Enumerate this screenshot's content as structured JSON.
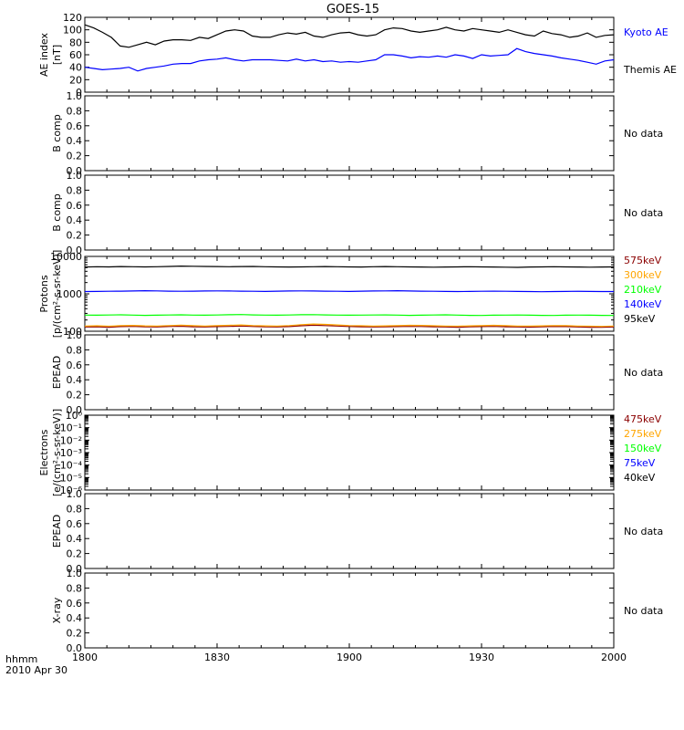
{
  "title": "GOES-15",
  "footer": {
    "line1": "hhmm",
    "line2": "2010 Apr 30"
  },
  "x_ticks": [
    "1800",
    "1830",
    "1900",
    "1930",
    "2000"
  ],
  "chart_data": [
    {
      "type": "line",
      "ylabel": [
        "AE index",
        "[nT]"
      ],
      "yticks": [
        "120",
        "100",
        "80",
        "60",
        "40",
        "20",
        "0"
      ],
      "ylim": [
        0,
        120
      ],
      "x_range_minutes": [
        0,
        120
      ],
      "series": [
        {
          "name": "Kyoto AE",
          "color": "#0000ff",
          "x": [
            0,
            2,
            4,
            6,
            8,
            10,
            12,
            14,
            16,
            18,
            20,
            22,
            24,
            26,
            28,
            30,
            32,
            34,
            36,
            38,
            40,
            42,
            44,
            46,
            48,
            50,
            52,
            54,
            56,
            58,
            60,
            62,
            64,
            66,
            68,
            70,
            72,
            74,
            76,
            78,
            80,
            82,
            84,
            86,
            88,
            90,
            92,
            94,
            96,
            98,
            100,
            102,
            104,
            106,
            108,
            110,
            112,
            114,
            116,
            118,
            120
          ],
          "values": [
            40,
            38,
            36,
            37,
            38,
            40,
            34,
            38,
            40,
            42,
            45,
            46,
            46,
            50,
            52,
            53,
            55,
            52,
            50,
            52,
            52,
            52,
            51,
            50,
            53,
            50,
            52,
            49,
            50,
            48,
            49,
            48,
            50,
            52,
            60,
            60,
            58,
            55,
            57,
            56,
            58,
            56,
            60,
            58,
            54,
            60,
            58,
            59,
            60,
            70,
            65,
            62,
            60,
            58,
            55,
            53,
            51,
            48,
            45,
            50,
            52
          ]
        },
        {
          "name": "Themis AE",
          "color": "#000000",
          "x": [
            0,
            2,
            4,
            6,
            8,
            10,
            12,
            14,
            16,
            18,
            20,
            22,
            24,
            26,
            28,
            30,
            32,
            34,
            36,
            38,
            40,
            42,
            44,
            46,
            48,
            50,
            52,
            54,
            56,
            58,
            60,
            62,
            64,
            66,
            68,
            70,
            72,
            74,
            76,
            78,
            80,
            82,
            84,
            86,
            88,
            90,
            92,
            94,
            96,
            98,
            100,
            102,
            104,
            106,
            108,
            110,
            112,
            114,
            116,
            118,
            120
          ],
          "values": [
            108,
            103,
            96,
            88,
            74,
            72,
            76,
            80,
            76,
            82,
            84,
            84,
            83,
            88,
            86,
            92,
            98,
            100,
            98,
            90,
            88,
            88,
            92,
            95,
            93,
            96,
            90,
            88,
            92,
            95,
            96,
            92,
            90,
            92,
            100,
            103,
            102,
            98,
            96,
            98,
            100,
            104,
            100,
            98,
            102,
            100,
            98,
            96,
            100,
            96,
            92,
            90,
            98,
            94,
            92,
            88,
            90,
            95,
            88,
            91,
            92
          ]
        }
      ]
    },
    {
      "type": "line",
      "ylabel": [
        "B comp"
      ],
      "yticks": [
        "1.0",
        "0.8",
        "0.6",
        "0.4",
        "0.2",
        "0.0"
      ],
      "ylim": [
        0,
        1
      ],
      "series": [],
      "note": "No data"
    },
    {
      "type": "line",
      "ylabel": [
        "B comp"
      ],
      "yticks": [
        "1.0",
        "0.8",
        "0.6",
        "0.4",
        "0.2",
        "0.0"
      ],
      "ylim": [
        0,
        1
      ],
      "series": [],
      "note": "No data"
    },
    {
      "type": "line",
      "ylabel": [
        "Protons",
        "[p/(cm²-s-sr-keV)]"
      ],
      "yscale": "log",
      "yticks": [
        "10000",
        "1000",
        "100"
      ],
      "ylim": [
        100,
        10000
      ],
      "series": [
        {
          "name": "575keV",
          "color": "#8b0000",
          "values": [
            130,
            132,
            128,
            133,
            135,
            131,
            130,
            134,
            136,
            132,
            130,
            133,
            135,
            138,
            134,
            131,
            130,
            133,
            140,
            145,
            142,
            138,
            134,
            132,
            130,
            131,
            133,
            135,
            134,
            132,
            130,
            128,
            131,
            133,
            135,
            132,
            130,
            129,
            131,
            134,
            133,
            130,
            128,
            127,
            130
          ]
        },
        {
          "name": "300keV",
          "color": "#ffa500",
          "values": [
            138,
            140,
            136,
            141,
            143,
            139,
            138,
            142,
            145,
            141,
            138,
            141,
            144,
            147,
            142,
            139,
            138,
            142,
            150,
            156,
            152,
            147,
            142,
            140,
            138,
            139,
            141,
            144,
            143,
            140,
            138,
            136,
            139,
            141,
            144,
            141,
            138,
            137,
            139,
            142,
            141,
            138,
            136,
            135,
            138
          ]
        },
        {
          "name": "210keV",
          "color": "#00ff00",
          "values": [
            270,
            268,
            272,
            275,
            270,
            265,
            268,
            272,
            275,
            270,
            268,
            272,
            276,
            280,
            274,
            270,
            268,
            272,
            276,
            278,
            274,
            270,
            268,
            270,
            272,
            274,
            270,
            266,
            268,
            272,
            275,
            270,
            266,
            264,
            268,
            270,
            272,
            268,
            265,
            264,
            268,
            270,
            268,
            265,
            264
          ]
        },
        {
          "name": "140keV",
          "color": "#0000ff",
          "values": [
            1150,
            1160,
            1170,
            1180,
            1190,
            1210,
            1200,
            1180,
            1170,
            1180,
            1190,
            1200,
            1190,
            1180,
            1170,
            1160,
            1180,
            1190,
            1200,
            1190,
            1180,
            1170,
            1160,
            1180,
            1190,
            1200,
            1210,
            1190,
            1180,
            1170,
            1160,
            1150,
            1160,
            1170,
            1180,
            1170,
            1160,
            1150,
            1140,
            1150,
            1160,
            1170,
            1160,
            1150,
            1150
          ]
        },
        {
          "name": "95keV",
          "color": "#000000",
          "values": [
            5200,
            5300,
            5250,
            5350,
            5300,
            5250,
            5300,
            5400,
            5500,
            5450,
            5400,
            5350,
            5300,
            5350,
            5400,
            5300,
            5250,
            5200,
            5250,
            5300,
            5350,
            5300,
            5250,
            5200,
            5300,
            5350,
            5300,
            5250,
            5200,
            5150,
            5200,
            5250,
            5300,
            5250,
            5200,
            5150,
            5100,
            5200,
            5250,
            5300,
            5250,
            5200,
            5150,
            5200,
            5250
          ]
        }
      ]
    },
    {
      "type": "line",
      "ylabel": [
        "EPEAD"
      ],
      "yticks": [
        "1.0",
        "0.8",
        "0.6",
        "0.4",
        "0.2",
        "0.0"
      ],
      "ylim": [
        0,
        1
      ],
      "series": [],
      "note": "No data"
    },
    {
      "type": "line",
      "ylabel": [
        "Electrons",
        "[e/(cm²-s-sr-keV)]"
      ],
      "yscale": "log",
      "yticks": [
        "10⁰",
        "10⁻¹",
        "10⁻²",
        "10⁻³",
        "10⁻⁴",
        "10⁻⁵",
        "10⁻⁶"
      ],
      "ylim": [
        1e-06,
        1
      ],
      "series": [
        {
          "name": "475keV",
          "color": "#8b0000"
        },
        {
          "name": "275keV",
          "color": "#ffa500"
        },
        {
          "name": "150keV",
          "color": "#00ff00"
        },
        {
          "name": "75keV",
          "color": "#0000ff"
        },
        {
          "name": "40keV",
          "color": "#000000"
        }
      ]
    },
    {
      "type": "line",
      "ylabel": [
        "EPEAD"
      ],
      "yticks": [
        "1.0",
        "0.8",
        "0.6",
        "0.4",
        "0.2",
        "0.0"
      ],
      "ylim": [
        0,
        1
      ],
      "series": [],
      "note": "No data"
    },
    {
      "type": "line",
      "ylabel": [
        "X-ray"
      ],
      "yticks": [
        "1.0",
        "0.8",
        "0.6",
        "0.4",
        "0.2",
        "0.0"
      ],
      "ylim": [
        0,
        1
      ],
      "series": [],
      "note": "No data"
    }
  ]
}
